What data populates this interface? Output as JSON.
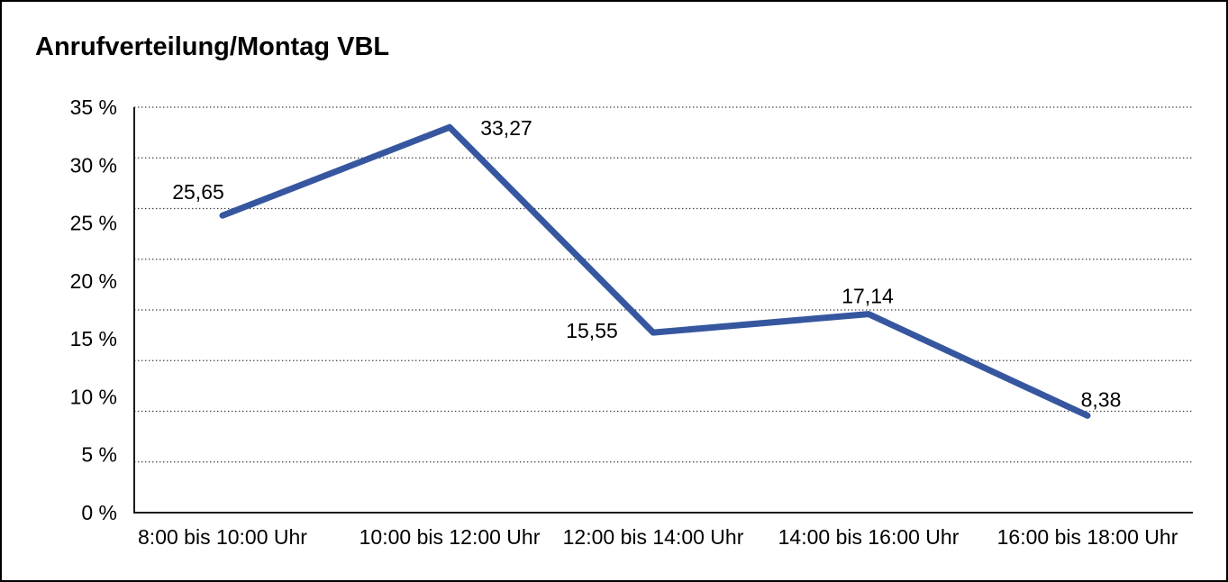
{
  "title": "Anrufverteilung/Montag VBL",
  "colors": {
    "line": "#36579f",
    "text": "#000000",
    "grid": "#3f3f3f",
    "axis": "#1a1a1a",
    "border": "#000000",
    "background": "#ffffff"
  },
  "chart_data": {
    "type": "line",
    "title": "Anrufverteilung/Montag VBL",
    "categories": [
      "8:00 bis 10:00 Uhr",
      "10:00 bis 12:00 Uhr",
      "12:00 bis 14:00 Uhr",
      "14:00 bis 16:00 Uhr",
      "16:00 bis 18:00 Uhr"
    ],
    "values": [
      25.65,
      33.27,
      15.55,
      17.14,
      8.38
    ],
    "data_labels": [
      "25,65",
      "33,27",
      "15,55",
      "17,14",
      "8,38"
    ],
    "series_name": "Anrufverteilung Montag VBL",
    "xlabel": "",
    "ylabel": "",
    "ylim": [
      0,
      35
    ],
    "y_tick_step": 5,
    "y_tick_labels": [
      "35 %",
      "30 %",
      "25 %",
      "20 %",
      "15 %",
      "10 %",
      "5 %",
      "0 %"
    ],
    "grid": "horizontal-dotted",
    "gridline_count": 9,
    "legend": "none",
    "line_color": "#36579f",
    "label_placements": [
      "above-left",
      "right",
      "left",
      "above",
      "above-right"
    ]
  }
}
